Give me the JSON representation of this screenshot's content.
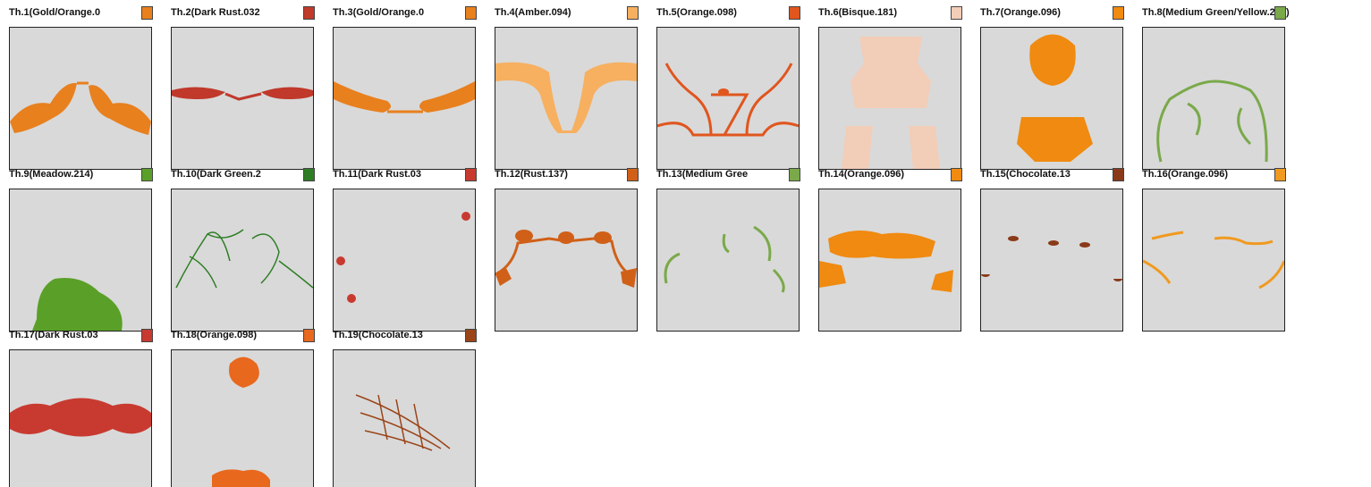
{
  "threads": [
    {
      "label": "Th.1(Gold/Orange.0",
      "color": "#e8801e"
    },
    {
      "label": "Th.2(Dark Rust.032",
      "color": "#c0392b"
    },
    {
      "label": "Th.3(Gold/Orange.0",
      "color": "#e8801e"
    },
    {
      "label": "Th.4(Amber.094)",
      "color": "#f6b060"
    },
    {
      "label": "Th.5(Orange.098)",
      "color": "#e0561e"
    },
    {
      "label": "Th.6(Bisque.181)",
      "color": "#f2cdb8"
    },
    {
      "label": "Th.7(Orange.096)",
      "color": "#f08a10"
    },
    {
      "label": "Th.8(Medium Green/Yellow.208)",
      "color": "#7aa94a"
    },
    {
      "label": "Th.9(Meadow.214)",
      "color": "#5aa028"
    },
    {
      "label": "Th.10(Dark Green.2",
      "color": "#2e7d24"
    },
    {
      "label": "Th.11(Dark Rust.03",
      "color": "#c83a30"
    },
    {
      "label": "Th.12(Rust.137)",
      "color": "#d06018"
    },
    {
      "label": "Th.13(Medium Gree",
      "color": "#7aa94a"
    },
    {
      "label": "Th.14(Orange.096)",
      "color": "#f08a10"
    },
    {
      "label": "Th.15(Chocolate.13",
      "color": "#8a3a18"
    },
    {
      "label": "Th.16(Orange.096)",
      "color": "#f09a20"
    },
    {
      "label": "Th.17(Dark Rust.03",
      "color": "#c83a30"
    },
    {
      "label": "Th.18(Orange.098)",
      "color": "#e8681e"
    },
    {
      "label": "Th.19(Chocolate.13",
      "color": "#9a4418"
    }
  ]
}
